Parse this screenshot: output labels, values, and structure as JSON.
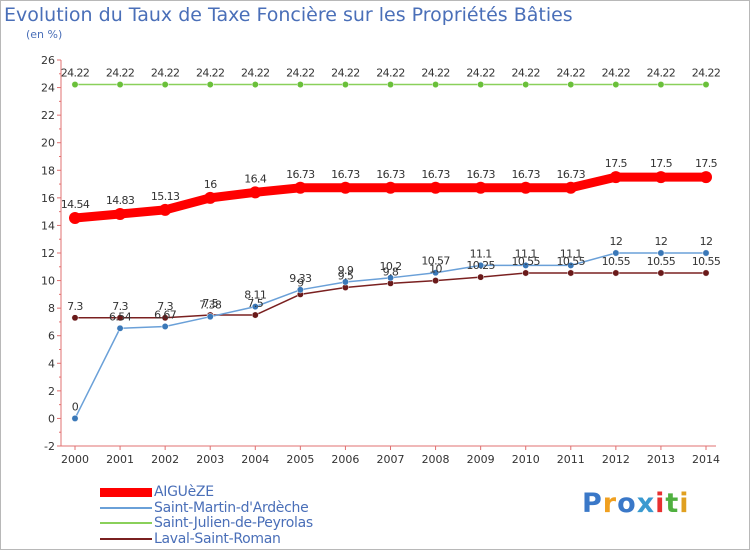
{
  "chart_data": {
    "type": "line",
    "title": "Evolution du Taux de Taxe Foncière sur les Propriétés Bâties",
    "ylabel": "(en %)",
    "xlabel": "",
    "ylim": [
      -2,
      26
    ],
    "yticks": [
      -2,
      0,
      2,
      4,
      6,
      8,
      10,
      12,
      14,
      16,
      18,
      20,
      22,
      24,
      26
    ],
    "grid": false,
    "categories": [
      "2000",
      "2001",
      "2002",
      "2003",
      "2004",
      "2005",
      "2006",
      "2007",
      "2008",
      "2009",
      "2010",
      "2011",
      "2012",
      "2013",
      "2014"
    ],
    "series": [
      {
        "name": "AIGUèZE",
        "color": "#ff0000",
        "values": [
          14.54,
          14.83,
          15.13,
          16,
          16.4,
          16.73,
          16.73,
          16.73,
          16.73,
          16.73,
          16.73,
          16.73,
          17.5,
          17.5,
          17.5
        ],
        "labels": [
          "14.54",
          "14.83",
          "15.13",
          "16",
          "16.4",
          "16.73",
          "16.73",
          "16.73",
          "16.73",
          "16.73",
          "16.73",
          "16.73",
          "17.5",
          "17.5",
          "17.5"
        ]
      },
      {
        "name": "Saint-Martin-d'Ardèche",
        "color": "#6aa0d8",
        "values": [
          0,
          6.54,
          6.67,
          7.38,
          8.11,
          9.33,
          9.9,
          10.2,
          10.57,
          11.1,
          11.1,
          11.1,
          12,
          12,
          12
        ],
        "labels": [
          "0",
          "6.54",
          "6.67",
          "7.38",
          "8.11",
          "9.33",
          "9.9",
          "10.2",
          "10.57",
          "11.1",
          "11.1",
          "11.1",
          "12",
          "12",
          "12"
        ]
      },
      {
        "name": "Saint-Julien-de-Peyrolas",
        "color": "#8ad05a",
        "values": [
          24.22,
          24.22,
          24.22,
          24.22,
          24.22,
          24.22,
          24.22,
          24.22,
          24.22,
          24.22,
          24.22,
          24.22,
          24.22,
          24.22,
          24.22
        ],
        "labels": [
          "24.22",
          "24.22",
          "24.22",
          "24.22",
          "24.22",
          "24.22",
          "24.22",
          "24.22",
          "24.22",
          "24.22",
          "24.22",
          "24.22",
          "24.22",
          "24.22",
          "24.22"
        ]
      },
      {
        "name": "Laval-Saint-Roman",
        "color": "#7a2020",
        "values": [
          7.3,
          7.3,
          7.3,
          7.5,
          7.5,
          9,
          9.5,
          9.8,
          10,
          10.25,
          10.55,
          10.55,
          10.55,
          10.55,
          10.55
        ],
        "labels": [
          "7.3",
          "7.3",
          "7.3",
          "7.5",
          "7.5",
          "9",
          "9.5",
          "9.8",
          "10",
          "10.25",
          "10.55",
          "10.55",
          "10.55",
          "10.55",
          "10.55"
        ]
      }
    ]
  },
  "logo": {
    "text": "Proxiti",
    "letter_colors": [
      "#3a78c8",
      "#f0a020",
      "#3a78c8",
      "#3a9ad0",
      "#e83030",
      "#50b040",
      "#e0a020"
    ]
  }
}
